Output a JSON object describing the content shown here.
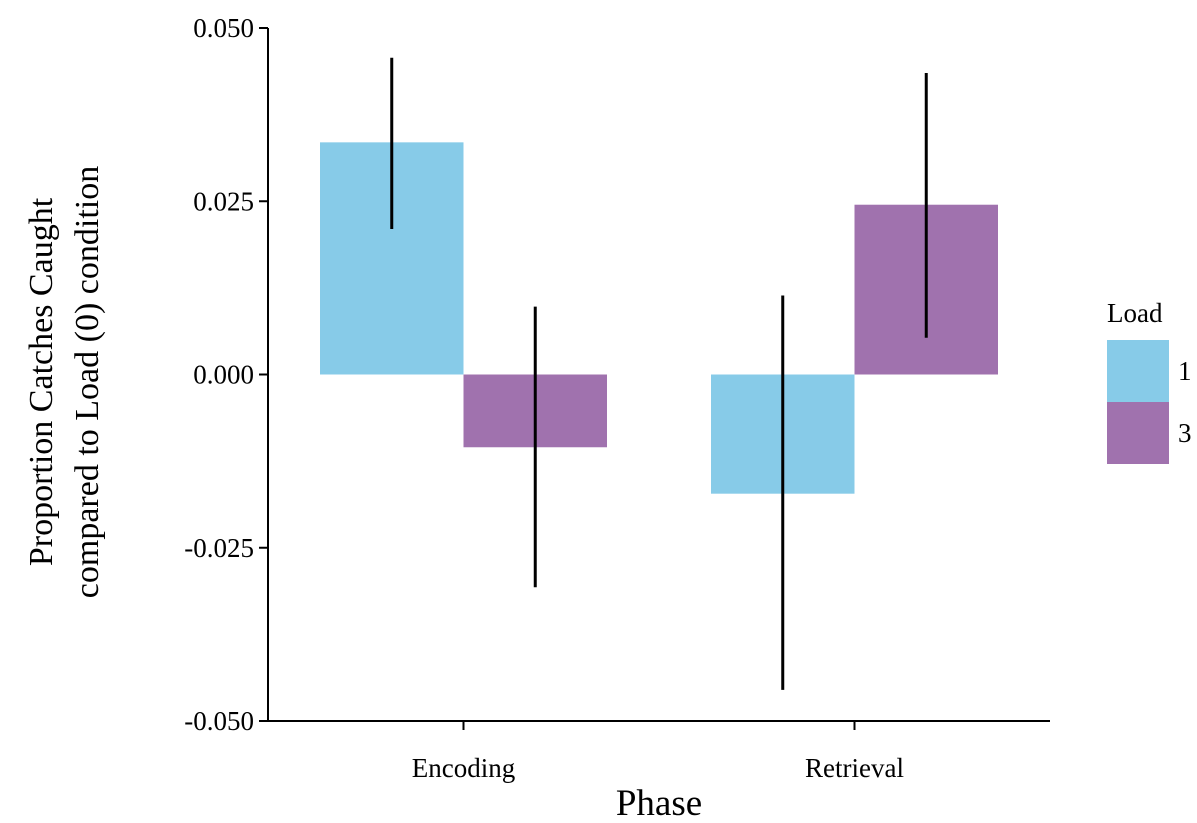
{
  "chart_data": {
    "type": "bar",
    "title": "",
    "xlabel": "Phase",
    "ylabel_lines": [
      "Proportion Catches Caught",
      "compared to Load (0) condition"
    ],
    "categories": [
      "Encoding",
      "Retrieval"
    ],
    "ylim": [
      -0.05,
      0.05
    ],
    "yticks": [
      -0.05,
      -0.025,
      0,
      0.025,
      0.05
    ],
    "ytick_labels": [
      "-0.050",
      "-0.025",
      "0.000",
      "0.025",
      "0.050"
    ],
    "legend": {
      "title": "Load",
      "position": "right"
    },
    "grid": false,
    "series": [
      {
        "name": "1",
        "color": "#87CBE8",
        "values": [
          0.0335,
          -0.0172
        ],
        "error_low": [
          0.021,
          -0.0455
        ],
        "error_high": [
          0.0457,
          0.0114
        ]
      },
      {
        "name": "3",
        "color": "#A072AE",
        "values": [
          -0.0105,
          0.0245
        ],
        "error_low": [
          -0.0307,
          0.0053
        ],
        "error_high": [
          0.0098,
          0.0435
        ]
      }
    ]
  }
}
